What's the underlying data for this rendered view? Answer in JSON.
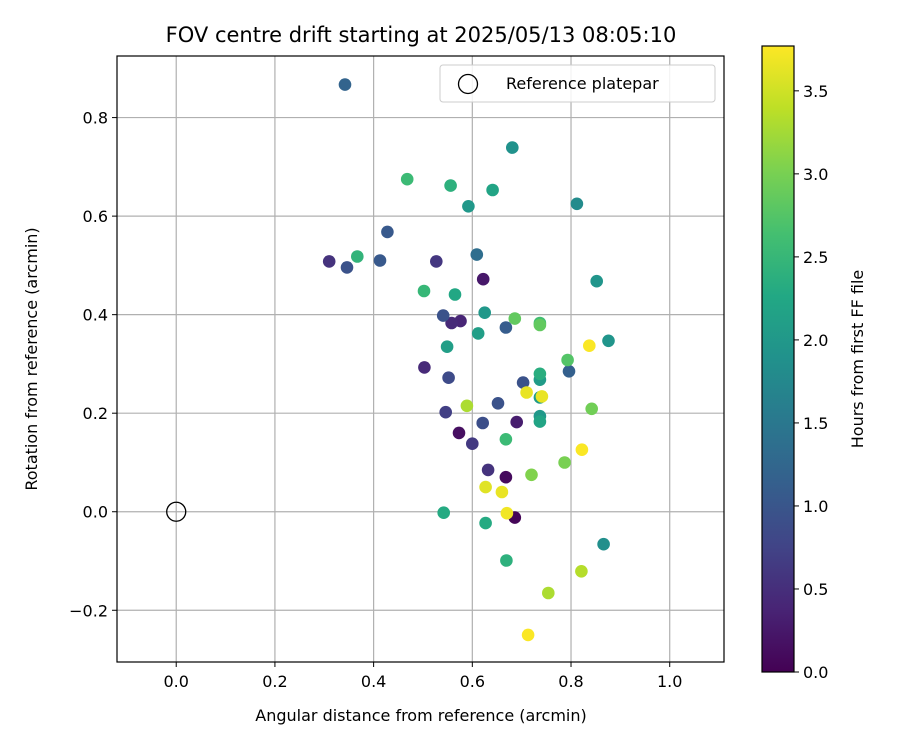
{
  "chart_data": {
    "type": "scatter",
    "title": "FOV centre drift starting at 2025/05/13 08:05:10",
    "xlabel": "Angular distance from reference (arcmin)",
    "ylabel": "Rotation from reference (arcmin)",
    "xlim": [
      -0.12,
      1.11
    ],
    "ylim": [
      -0.305,
      0.925
    ],
    "x_ticks": [
      0.0,
      0.2,
      0.4,
      0.6,
      0.8,
      1.0
    ],
    "x_tick_labels": [
      "0.0",
      "0.2",
      "0.4",
      "0.6",
      "0.8",
      "1.0"
    ],
    "y_ticks": [
      -0.2,
      0.0,
      0.2,
      0.4,
      0.6,
      0.8
    ],
    "y_tick_labels": [
      "−0.2",
      "0.0",
      "0.2",
      "0.4",
      "0.6",
      "0.8"
    ],
    "grid": true,
    "colormap": "viridis",
    "colorbar": {
      "label": "Hours from first FF file",
      "range": [
        0.0,
        3.77
      ],
      "ticks": [
        0.0,
        0.5,
        1.0,
        1.5,
        2.0,
        2.5,
        3.0,
        3.5
      ],
      "tick_labels": [
        "0.0",
        "0.5",
        "1.0",
        "1.5",
        "2.0",
        "2.5",
        "3.0",
        "3.5"
      ]
    },
    "reference": {
      "label": "Reference platepar",
      "x": 0.0,
      "y": 0.0,
      "marker": "hollow-circle"
    },
    "legend_position": "top-right",
    "points": [
      {
        "x": 0.686,
        "y": -0.012,
        "c": 0.05
      },
      {
        "x": 0.668,
        "y": 0.07,
        "c": 0.1
      },
      {
        "x": 0.573,
        "y": 0.16,
        "c": 0.15
      },
      {
        "x": 0.622,
        "y": 0.472,
        "c": 0.25
      },
      {
        "x": 0.69,
        "y": 0.182,
        "c": 0.3
      },
      {
        "x": 0.576,
        "y": 0.387,
        "c": 0.4
      },
      {
        "x": 0.503,
        "y": 0.293,
        "c": 0.45
      },
      {
        "x": 0.558,
        "y": 0.383,
        "c": 0.45
      },
      {
        "x": 0.632,
        "y": 0.085,
        "c": 0.55
      },
      {
        "x": 0.31,
        "y": 0.508,
        "c": 0.55
      },
      {
        "x": 0.527,
        "y": 0.508,
        "c": 0.6
      },
      {
        "x": 0.6,
        "y": 0.138,
        "c": 0.62
      },
      {
        "x": 0.546,
        "y": 0.202,
        "c": 0.7
      },
      {
        "x": 0.552,
        "y": 0.272,
        "c": 0.85
      },
      {
        "x": 0.621,
        "y": 0.18,
        "c": 0.9
      },
      {
        "x": 0.346,
        "y": 0.496,
        "c": 0.95
      },
      {
        "x": 0.652,
        "y": 0.22,
        "c": 0.95
      },
      {
        "x": 0.703,
        "y": 0.262,
        "c": 0.95
      },
      {
        "x": 0.541,
        "y": 0.398,
        "c": 0.95
      },
      {
        "x": 0.413,
        "y": 0.51,
        "c": 1.05
      },
      {
        "x": 0.428,
        "y": 0.568,
        "c": 1.05
      },
      {
        "x": 0.668,
        "y": 0.374,
        "c": 1.1
      },
      {
        "x": 0.796,
        "y": 0.285,
        "c": 1.15
      },
      {
        "x": 0.342,
        "y": 0.867,
        "c": 1.2
      },
      {
        "x": 0.609,
        "y": 0.522,
        "c": 1.35
      },
      {
        "x": 0.812,
        "y": 0.625,
        "c": 1.8
      },
      {
        "x": 0.866,
        "y": -0.066,
        "c": 1.85
      },
      {
        "x": 0.681,
        "y": 0.739,
        "c": 1.9
      },
      {
        "x": 0.876,
        "y": 0.347,
        "c": 1.95
      },
      {
        "x": 0.852,
        "y": 0.468,
        "c": 1.95
      },
      {
        "x": 0.625,
        "y": 0.404,
        "c": 2.0
      },
      {
        "x": 0.592,
        "y": 0.62,
        "c": 2.0
      },
      {
        "x": 0.737,
        "y": 0.194,
        "c": 2.0
      },
      {
        "x": 0.737,
        "y": 0.268,
        "c": 2.05
      },
      {
        "x": 0.737,
        "y": 0.232,
        "c": 2.05
      },
      {
        "x": 0.612,
        "y": 0.362,
        "c": 2.1
      },
      {
        "x": 0.549,
        "y": 0.335,
        "c": 2.1
      },
      {
        "x": 0.641,
        "y": 0.653,
        "c": 2.2
      },
      {
        "x": 0.737,
        "y": 0.183,
        "c": 2.2
      },
      {
        "x": 0.565,
        "y": 0.441,
        "c": 2.25
      },
      {
        "x": 0.627,
        "y": -0.023,
        "c": 2.3
      },
      {
        "x": 0.542,
        "y": -0.002,
        "c": 2.3
      },
      {
        "x": 0.737,
        "y": 0.28,
        "c": 2.35
      },
      {
        "x": 0.669,
        "y": -0.099,
        "c": 2.4
      },
      {
        "x": 0.556,
        "y": 0.662,
        "c": 2.4
      },
      {
        "x": 0.367,
        "y": 0.518,
        "c": 2.45
      },
      {
        "x": 0.502,
        "y": 0.448,
        "c": 2.5
      },
      {
        "x": 0.668,
        "y": 0.147,
        "c": 2.55
      },
      {
        "x": 0.468,
        "y": 0.675,
        "c": 2.55
      },
      {
        "x": 0.737,
        "y": 0.383,
        "c": 2.6
      },
      {
        "x": 0.793,
        "y": 0.308,
        "c": 2.75
      },
      {
        "x": 0.686,
        "y": 0.392,
        "c": 2.85
      },
      {
        "x": 0.737,
        "y": 0.379,
        "c": 2.85
      },
      {
        "x": 0.842,
        "y": 0.209,
        "c": 2.95
      },
      {
        "x": 0.787,
        "y": 0.1,
        "c": 3.0
      },
      {
        "x": 0.72,
        "y": 0.075,
        "c": 3.05
      },
      {
        "x": 0.589,
        "y": 0.215,
        "c": 3.3
      },
      {
        "x": 0.754,
        "y": -0.165,
        "c": 3.3
      },
      {
        "x": 0.821,
        "y": -0.121,
        "c": 3.35
      },
      {
        "x": 0.627,
        "y": 0.05,
        "c": 3.6
      },
      {
        "x": 0.66,
        "y": 0.04,
        "c": 3.65
      },
      {
        "x": 0.71,
        "y": 0.242,
        "c": 3.65
      },
      {
        "x": 0.741,
        "y": 0.234,
        "c": 3.65
      },
      {
        "x": 0.67,
        "y": -0.003,
        "c": 3.7
      },
      {
        "x": 0.837,
        "y": 0.337,
        "c": 3.75
      },
      {
        "x": 0.822,
        "y": 0.126,
        "c": 3.75
      },
      {
        "x": 0.713,
        "y": -0.25,
        "c": 3.75
      }
    ]
  }
}
